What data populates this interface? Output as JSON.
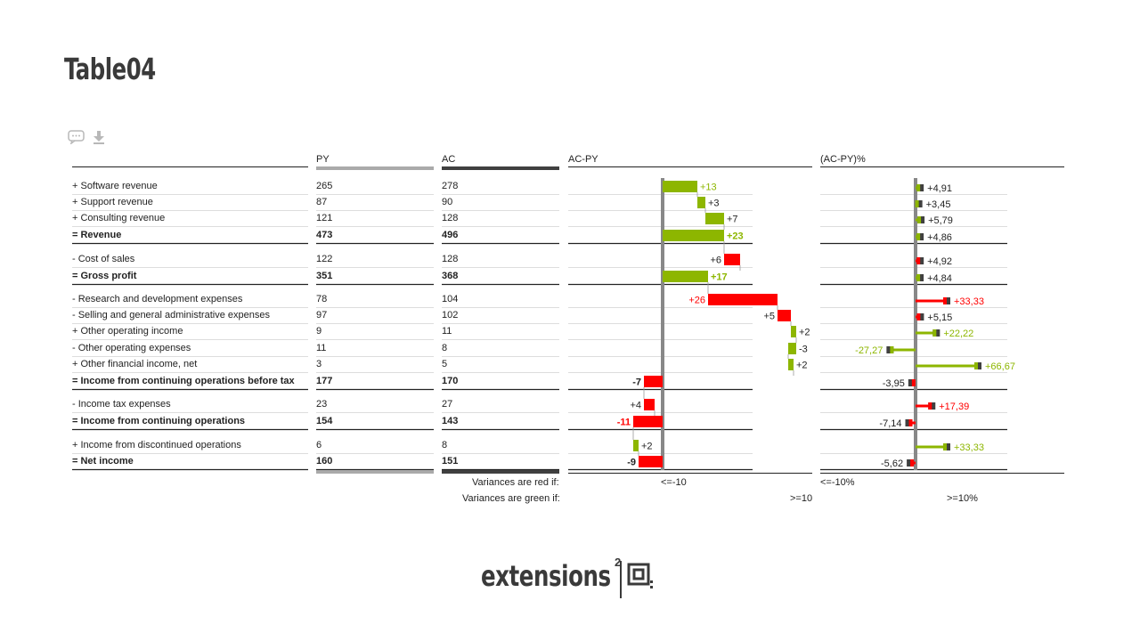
{
  "page_title": "Table04",
  "icons": {
    "comment": "comment-icon",
    "download": "download-icon"
  },
  "columns": {
    "py": "PY",
    "ac": "AC",
    "delta": "AC-PY",
    "delta_pct": "(AC-PY)%"
  },
  "colors": {
    "positive": "#8db600",
    "negative": "#ff0000",
    "axis": "#888888",
    "py_bar": "#aaaaaa",
    "ac_bar": "#404040",
    "marker": "#404040"
  },
  "chart_data": {
    "type": "table",
    "rows": [
      {
        "label": "+ Software revenue",
        "py": "265",
        "ac": "278",
        "delta": 13,
        "delta_label": "+13",
        "delta_pct": 4.91,
        "pct_label": "+4,91",
        "bold": false,
        "good": true
      },
      {
        "label": "+ Support revenue",
        "py": "87",
        "ac": "90",
        "delta": 3,
        "delta_label": "+3",
        "delta_pct": 3.45,
        "pct_label": "+3,45",
        "bold": false,
        "good": true
      },
      {
        "label": "+ Consulting revenue",
        "py": "121",
        "ac": "128",
        "delta": 7,
        "delta_label": "+7",
        "delta_pct": 5.79,
        "pct_label": "+5,79",
        "bold": false,
        "good": true
      },
      {
        "label": "= Revenue",
        "py": "473",
        "ac": "496",
        "delta": 23,
        "delta_label": "+23",
        "delta_pct": 4.86,
        "pct_label": "+4,86",
        "bold": true,
        "good": true
      },
      {
        "label": "- Cost of sales",
        "py": "122",
        "ac": "128",
        "delta": 6,
        "delta_label": "+6",
        "delta_pct": 4.92,
        "pct_label": "+4,92",
        "bold": false,
        "good": false
      },
      {
        "label": "= Gross profit",
        "py": "351",
        "ac": "368",
        "delta": 17,
        "delta_label": "+17",
        "delta_pct": 4.84,
        "pct_label": "+4,84",
        "bold": true,
        "good": true
      },
      {
        "label": "- Research and development expenses",
        "py": "78",
        "ac": "104",
        "delta": 26,
        "delta_label": "+26",
        "delta_pct": 33.33,
        "pct_label": "+33,33",
        "bold": false,
        "good": false
      },
      {
        "label": "- Selling and general administrative expenses",
        "py": "97",
        "ac": "102",
        "delta": 5,
        "delta_label": "+5",
        "delta_pct": 5.15,
        "pct_label": "+5,15",
        "bold": false,
        "good": false
      },
      {
        "label": "+ Other operating income",
        "py": "9",
        "ac": "11",
        "delta": 2,
        "delta_label": "+2",
        "delta_pct": 22.22,
        "pct_label": "+22,22",
        "bold": false,
        "good": true
      },
      {
        "label": "- Other operating expenses",
        "py": "11",
        "ac": "8",
        "delta": -3,
        "delta_label": "-3",
        "delta_pct": -27.27,
        "pct_label": "-27,27",
        "bold": false,
        "good": true
      },
      {
        "label": "+ Other financial income, net",
        "py": "3",
        "ac": "5",
        "delta": 2,
        "delta_label": "+2",
        "delta_pct": 66.67,
        "pct_label": "+66,67",
        "bold": false,
        "good": true
      },
      {
        "label": "= Income from continuing operations before tax",
        "py": "177",
        "ac": "170",
        "delta": -7,
        "delta_label": "-7",
        "delta_pct": -3.95,
        "pct_label": "-3,95",
        "bold": true,
        "good": false
      },
      {
        "label": "- Income tax expenses",
        "py": "23",
        "ac": "27",
        "delta": 4,
        "delta_label": "+4",
        "delta_pct": 17.39,
        "pct_label": "+17,39",
        "bold": false,
        "good": false
      },
      {
        "label": "= Income from continuing operations",
        "py": "154",
        "ac": "143",
        "delta": -11,
        "delta_label": "-11",
        "delta_pct": -7.14,
        "pct_label": "-7,14",
        "bold": true,
        "good": false
      },
      {
        "label": "+ Income from discontinued operations",
        "py": "6",
        "ac": "8",
        "delta": 2,
        "delta_label": "+2",
        "delta_pct": 33.33,
        "pct_label": "+33,33",
        "bold": false,
        "good": true
      },
      {
        "label": "= Net income",
        "py": "160",
        "ac": "151",
        "delta": -9,
        "delta_label": "-9",
        "delta_pct": -5.62,
        "pct_label": "-5,62",
        "bold": true,
        "good": false
      }
    ]
  },
  "legend": {
    "red_label": "Variances are red if:",
    "green_label": "Variances are green if:",
    "abs_red": "<=-10",
    "abs_green": ">=10",
    "pct_red": "<=-10%",
    "pct_green": ">=10%"
  },
  "brand": {
    "name": "extensions",
    "sup": "2"
  }
}
